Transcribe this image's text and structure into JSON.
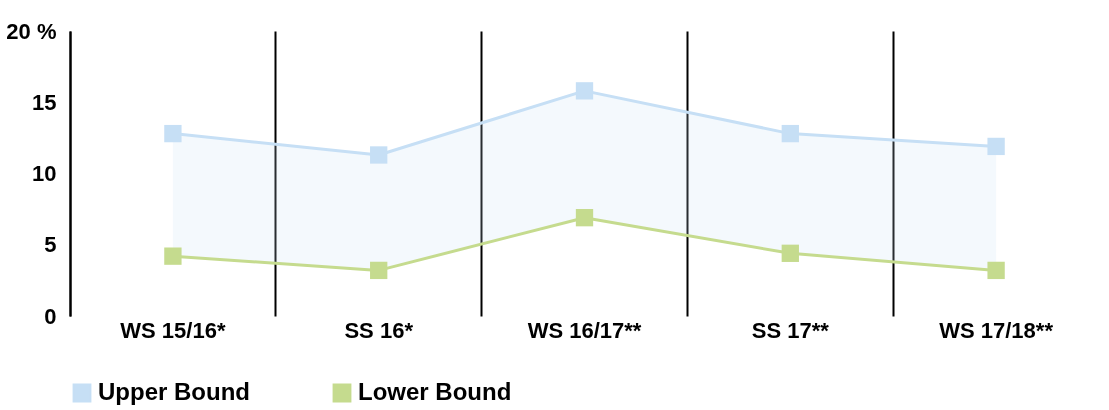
{
  "chart_data": {
    "type": "line",
    "categories": [
      "WS 15/16*",
      "SS 16*",
      "WS 16/17**",
      "SS 17**",
      "WS 17/18**"
    ],
    "series": [
      {
        "name": "Upper Bound",
        "color": "#c6dff5",
        "values": [
          12.8,
          11.3,
          15.8,
          12.8,
          11.9
        ],
        "lower": [
          4.2,
          3.2,
          6.9,
          4.4,
          3.2
        ],
        "upper": [
          12.8,
          11.3,
          15.8,
          12.8,
          11.9
        ]
      },
      {
        "name": "Lower Bound",
        "color": "#c5db8e",
        "values": [
          4.2,
          3.2,
          6.9,
          4.4,
          3.2
        ]
      }
    ],
    "ylim": [
      0,
      20
    ],
    "yticks": [
      0,
      5,
      10,
      15,
      {
        "value": 20,
        "label": "20 %"
      }
    ],
    "grid": "x",
    "legend": "bottom",
    "marker": "square",
    "line_style": "solid"
  }
}
